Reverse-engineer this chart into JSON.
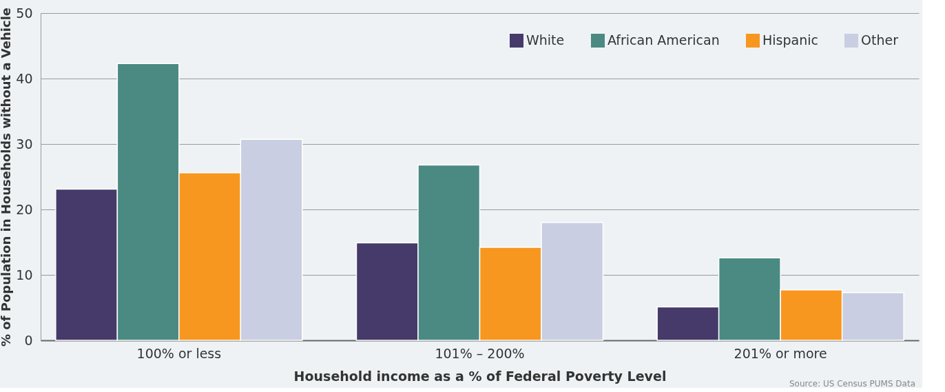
{
  "chart_data": {
    "type": "bar",
    "xlabel": "Household income as a % of Federal Poverty Level",
    "ylabel": "% of Population in Households without a Vehicle",
    "categories": [
      "100% or less",
      "101% – 200%",
      "201% or more"
    ],
    "series": [
      {
        "name": "White",
        "color": "#453a69",
        "values": [
          23.1,
          14.9,
          5.1
        ]
      },
      {
        "name": "African American",
        "color": "#4a8a82",
        "values": [
          42.3,
          26.8,
          12.6
        ]
      },
      {
        "name": "Hispanic",
        "color": "#f7971f",
        "values": [
          25.6,
          14.2,
          7.7
        ]
      },
      {
        "name": "Other",
        "color": "#c9cee2",
        "values": [
          30.7,
          18.0,
          7.3
        ]
      }
    ],
    "ylim": [
      0,
      50
    ],
    "yticks": [
      0,
      10,
      20,
      30,
      40,
      50
    ],
    "grid": "y",
    "legend": "top right",
    "annotations": [
      "Source: US Census PUMS Data"
    ]
  }
}
